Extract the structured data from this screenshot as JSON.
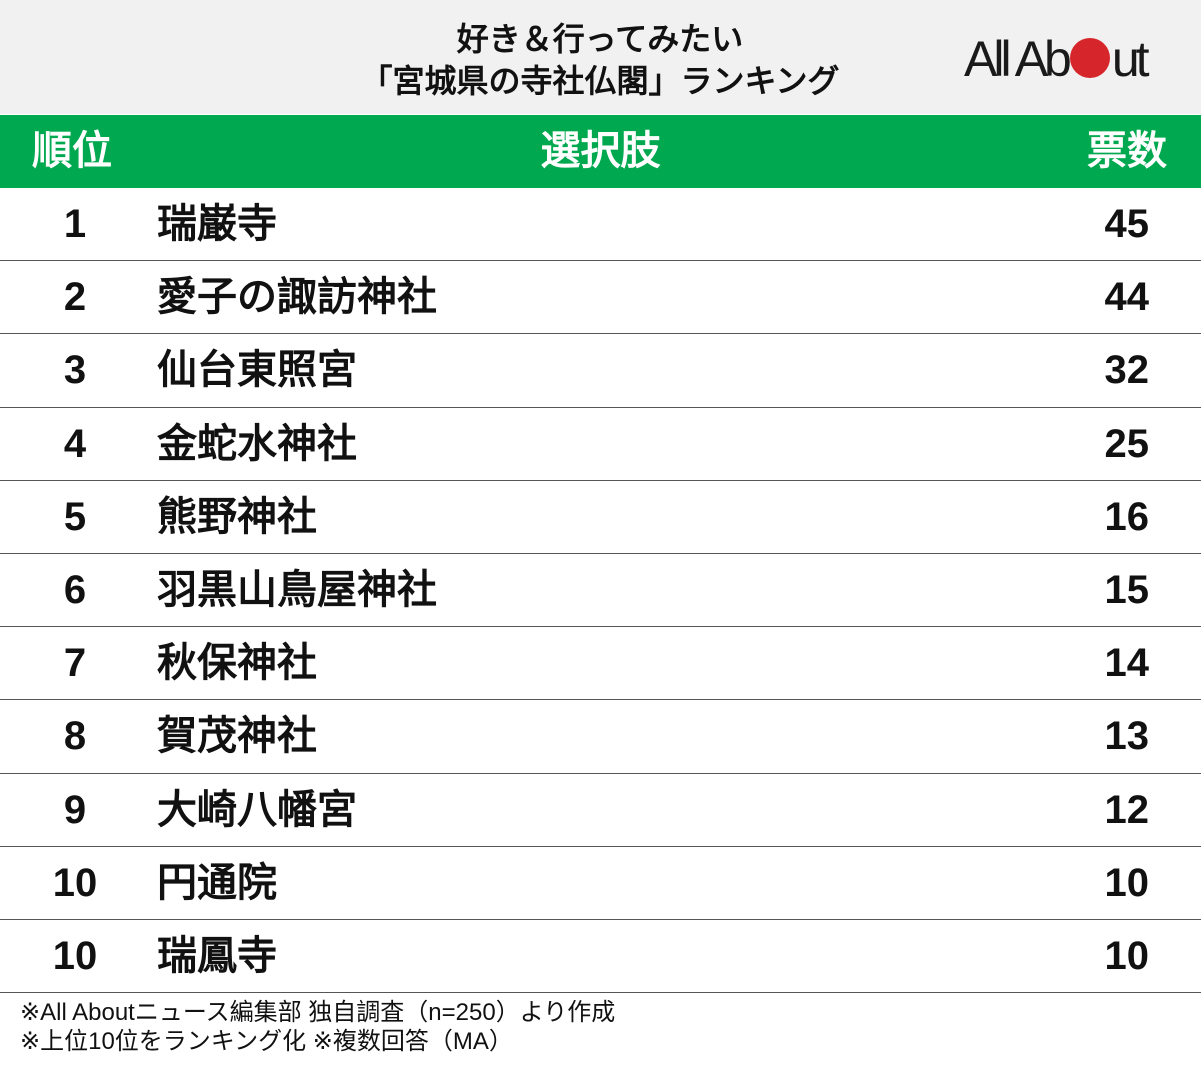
{
  "title_line1": "好き＆行ってみたい",
  "title_line2": "「宮城県の寺社仏閣」ランキング",
  "logo": {
    "text_before": "All Ab",
    "text_after": "ut",
    "dot_color": "#d7262b"
  },
  "colors": {
    "header_green": "#00a84f",
    "header_band": "#f1f1f1"
  },
  "columns": {
    "rank": "順位",
    "name": "選択肢",
    "votes": "票数"
  },
  "rows": [
    {
      "rank": "1",
      "name": "瑞巌寺",
      "votes": "45"
    },
    {
      "rank": "2",
      "name": "愛子の諏訪神社",
      "votes": "44"
    },
    {
      "rank": "3",
      "name": "仙台東照宮",
      "votes": "32"
    },
    {
      "rank": "4",
      "name": "金蛇水神社",
      "votes": "25"
    },
    {
      "rank": "5",
      "name": "熊野神社",
      "votes": "16"
    },
    {
      "rank": "6",
      "name": "羽黒山鳥屋神社",
      "votes": "15"
    },
    {
      "rank": "7",
      "name": "秋保神社",
      "votes": "14"
    },
    {
      "rank": "8",
      "name": "賀茂神社",
      "votes": "13"
    },
    {
      "rank": "9",
      "name": "大崎八幡宮",
      "votes": "12"
    },
    {
      "rank": "10",
      "name": "円通院",
      "votes": "10"
    },
    {
      "rank": "10",
      "name": "瑞鳳寺",
      "votes": "10"
    }
  ],
  "footnotes": [
    "※All Aboutニュース編集部 独自調査（n=250）より作成",
    "※上位10位をランキング化 ※複数回答（MA）"
  ],
  "chart_data": {
    "type": "table",
    "title": "好き＆行ってみたい「宮城県の寺社仏閣」ランキング",
    "columns": [
      "順位",
      "選択肢",
      "票数"
    ],
    "categories": [
      "瑞巌寺",
      "愛子の諏訪神社",
      "仙台東照宮",
      "金蛇水神社",
      "熊野神社",
      "羽黒山鳥屋神社",
      "秋保神社",
      "賀茂神社",
      "大崎八幡宮",
      "円通院",
      "瑞鳳寺"
    ],
    "values": [
      45,
      44,
      32,
      25,
      16,
      15,
      14,
      13,
      12,
      10,
      10
    ]
  }
}
